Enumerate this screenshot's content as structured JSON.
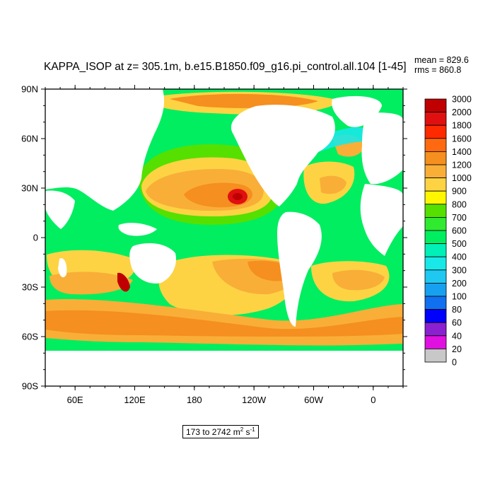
{
  "title": "KAPPA_ISOP at z= 305.1m, b.e15.B1850.f09_g16.pi_control.all.104 [1-45]",
  "stats": {
    "mean": "mean = 829.6",
    "rms": "rms = 860.8"
  },
  "lat_labels": [
    "90N",
    "60N",
    "30N",
    "0",
    "30S",
    "60S",
    "90S"
  ],
  "lon_labels": [
    "60E",
    "120E",
    "180",
    "120W",
    "60W",
    "0"
  ],
  "range_text": {
    "prefix": "173 to 2742 m",
    "sup1": "2",
    "mid": " s",
    "sup2": "-1"
  },
  "colorbar": {
    "labels": [
      "3000",
      "2000",
      "1800",
      "1600",
      "1400",
      "1200",
      "1000",
      "900",
      "800",
      "700",
      "600",
      "500",
      "400",
      "300",
      "200",
      "100",
      "80",
      "60",
      "40",
      "20",
      "0"
    ],
    "colors": [
      "#c00000",
      "#e01010",
      "#ff2a00",
      "#ff6a10",
      "#f58f1f",
      "#f9ae38",
      "#fdd344",
      "#fff700",
      "#55e000",
      "#30ea30",
      "#00ee60",
      "#00f0b8",
      "#18e8e8",
      "#1ec8f0",
      "#18a0f0",
      "#1070f0",
      "#0000ff",
      "#8a20d0",
      "#e010e0",
      "#c8c8c8",
      "#707070"
    ]
  },
  "legend_palette": {
    "ocean_base": "#00ee60",
    "land": "#ffffff"
  }
}
